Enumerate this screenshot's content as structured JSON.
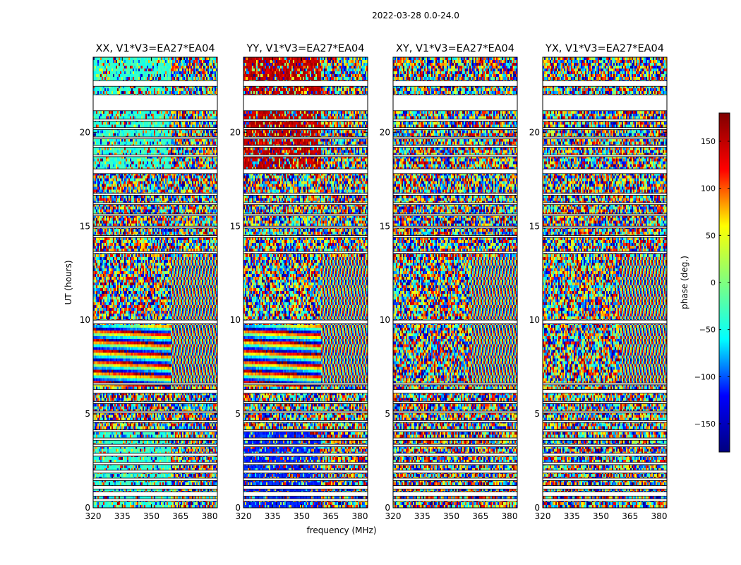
{
  "figure": {
    "suptitle": "2022-03-28 0.0-24.0"
  },
  "chart_data": {
    "type": "heatmap",
    "suptitle": "2022-03-28 0.0-24.0",
    "xlabel": "frequency (MHz)",
    "ylabel": "UT (hours)",
    "xlim": [
      320,
      384
    ],
    "ylim": [
      0,
      24
    ],
    "xticks": [
      320,
      335,
      350,
      365,
      380
    ],
    "yticks": [
      0,
      5,
      10,
      15,
      20
    ],
    "colorbar": {
      "label": "phase (deg.)",
      "range": [
        -180,
        180
      ],
      "ticks": [
        150,
        100,
        50,
        0,
        -50,
        -100,
        -150
      ],
      "tick_labels": [
        "150",
        "100",
        "50",
        "0",
        "−50",
        "−100",
        "−150"
      ],
      "colormap": "jet",
      "colormap_stops": [
        "#00007f",
        "#0000ff",
        "#00ffff",
        "#7fff7f",
        "#ffff00",
        "#ff0000",
        "#7f0000"
      ]
    },
    "panels": [
      {
        "title": "XX, V1*V3=EA27*EA04",
        "polarization": "XX"
      },
      {
        "title": "YY, V1*V3=EA27*EA04",
        "polarization": "YY"
      },
      {
        "title": "XY, V1*V3=EA27*EA04",
        "polarization": "XY"
      },
      {
        "title": "YX, V1*V3=EA27*EA04",
        "polarization": "YX"
      }
    ],
    "flagged_bands_hours": [
      [
        0.35,
        0.48
      ],
      [
        0.62,
        0.85
      ],
      [
        1.0,
        1.18
      ],
      [
        1.45,
        1.58
      ],
      [
        1.85,
        2.0
      ],
      [
        2.3,
        2.42
      ],
      [
        2.75,
        2.9
      ],
      [
        3.25,
        3.38
      ],
      [
        3.6,
        3.72
      ],
      [
        4.05,
        4.15
      ],
      [
        4.55,
        4.65
      ],
      [
        5.05,
        5.15
      ],
      [
        5.55,
        5.65
      ],
      [
        6.1,
        6.3
      ],
      [
        6.55,
        6.65
      ],
      [
        9.8,
        10.0
      ],
      [
        13.55,
        13.65
      ],
      [
        14.4,
        14.5
      ],
      [
        14.9,
        15.0
      ],
      [
        15.55,
        15.65
      ],
      [
        16.15,
        16.25
      ],
      [
        16.65,
        16.75
      ],
      [
        17.8,
        18.05
      ],
      [
        18.7,
        18.8
      ],
      [
        19.2,
        19.3
      ],
      [
        19.65,
        19.75
      ],
      [
        20.15,
        20.25
      ],
      [
        20.6,
        20.7
      ],
      [
        21.15,
        22.0
      ],
      [
        22.45,
        22.75
      ]
    ]
  }
}
